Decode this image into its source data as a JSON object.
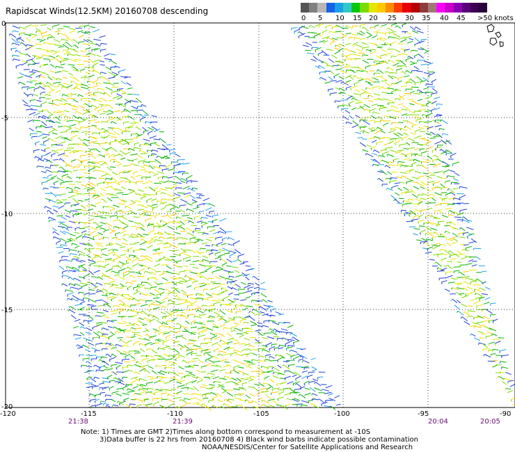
{
  "title": "Rapidscat Winds(12.5KM) 20160708 descending",
  "scale": {
    "colors": [
      "#555555",
      "#808080",
      "#b8b8b8",
      "#1464e6",
      "#1ea0e6",
      "#32c8c8",
      "#00c800",
      "#78dc00",
      "#e6e600",
      "#ffc800",
      "#ff8c00",
      "#ff3c00",
      "#e60000",
      "#b40000",
      "#8c3c3c",
      "#a07878",
      "#ff00ff",
      "#c800c8",
      "#8c00b4",
      "#5a0078",
      "#3c0050",
      "#2a003a"
    ],
    "labels": [
      "0",
      "5",
      "10",
      "15",
      "20",
      "25",
      "30",
      "35",
      "40",
      "45",
      ">50 knots"
    ]
  },
  "map": {
    "lon_labels": [
      "-120",
      "-115",
      "-110",
      "-105",
      "-100",
      "-95",
      "-90"
    ],
    "lat_labels": [
      "0",
      "-5",
      "-10",
      "-15",
      "-20"
    ],
    "time_labels": [
      "21:38",
      "21:39",
      "20:04",
      "20:05"
    ]
  },
  "notes": [
    "Note: 1) Times are GMT 2)Times along bottom correspond to measurement at -10S",
    "3)Data buffer is 22 hrs from 20160708 4) Black wind barbs indicate possible contamination",
    "NOAA/NESDIS/Center for Satellite Applications and Research"
  ]
}
